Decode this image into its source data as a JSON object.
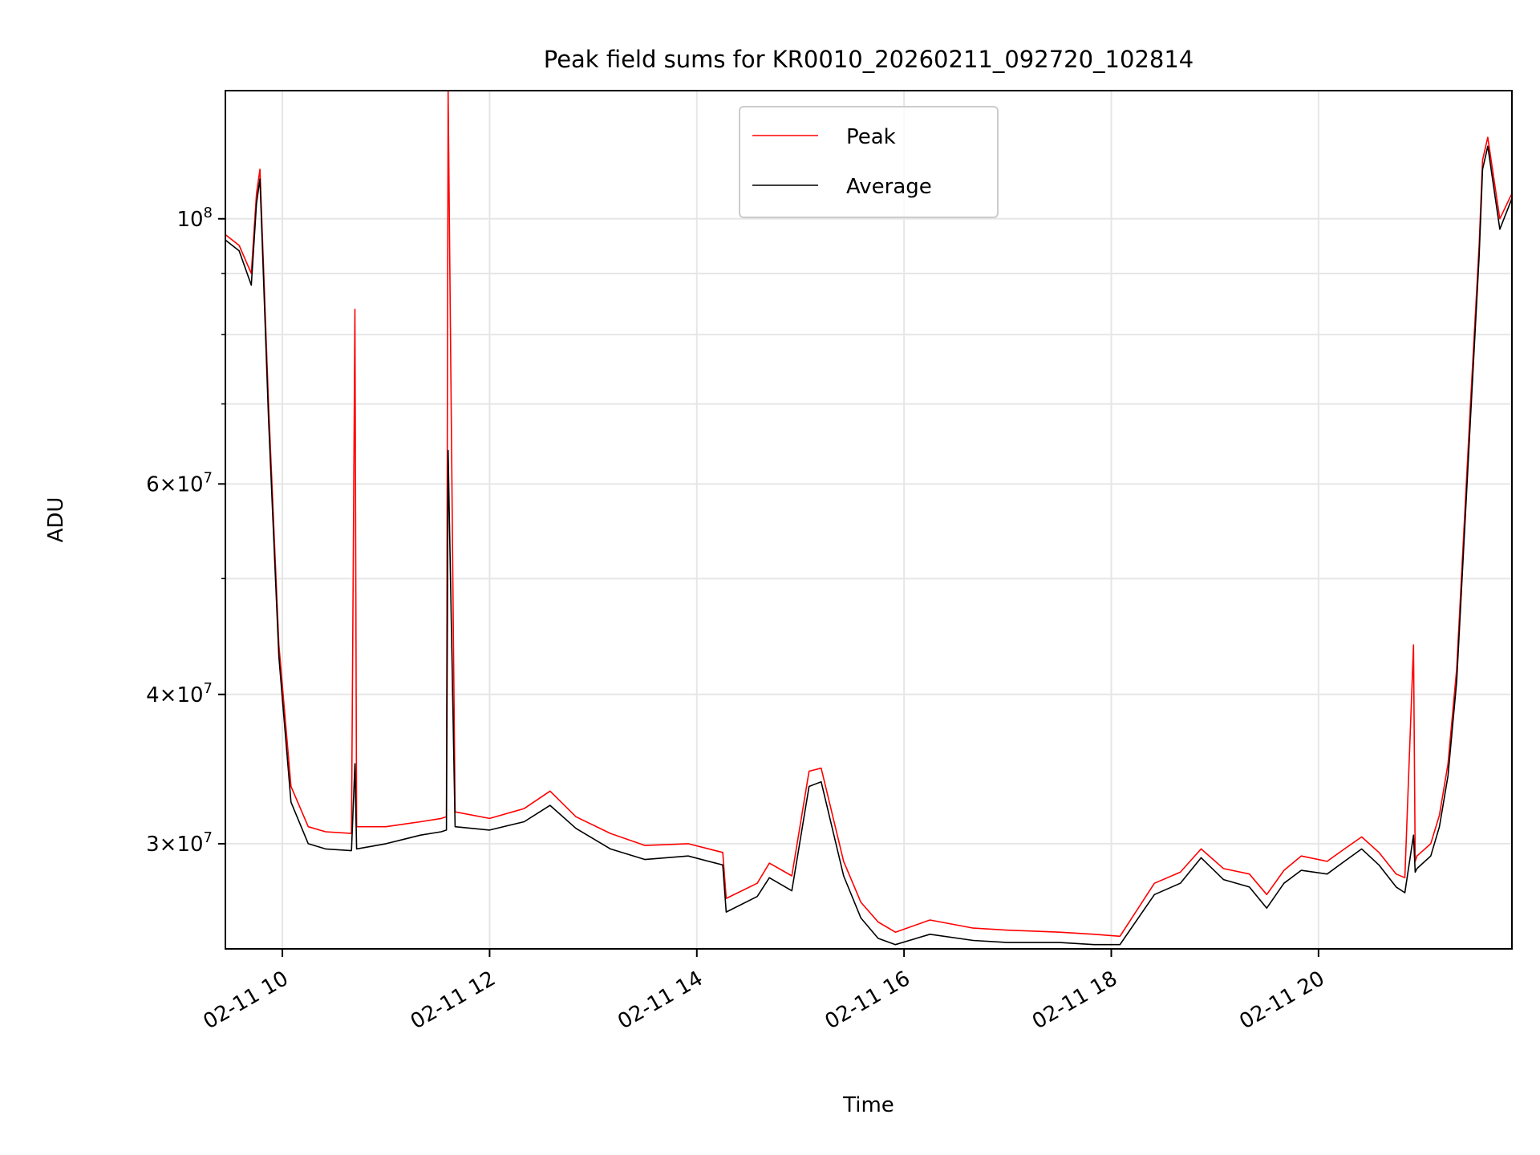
{
  "chart_data": {
    "type": "line",
    "title": "Peak field sums for KR0010_20260211_092720_102814",
    "xlabel": "Time",
    "ylabel": "ADU",
    "y_scale": "log",
    "grid": true,
    "legend_placement": "top-center",
    "xlim": [
      "02-11 09:27",
      "02-11 21:52"
    ],
    "ylim": [
      24500000.0,
      128000000.0
    ],
    "x_ticks": [
      "02-11 10",
      "02-11 12",
      "02-11 14",
      "02-11 16",
      "02-11 18",
      "02-11 20"
    ],
    "x_tick_hours": [
      10,
      12,
      14,
      16,
      18,
      20
    ],
    "y_ticks": [
      {
        "value": 30000000,
        "mantissa": "3",
        "exp": "7"
      },
      {
        "value": 40000000,
        "mantissa": "4",
        "exp": "7"
      },
      {
        "value": 60000000,
        "mantissa": "6",
        "exp": "7"
      },
      {
        "value": 100000000,
        "mantissa": "",
        "exp": "8"
      }
    ],
    "colors": {
      "peak": "#ff0000",
      "average": "#000000",
      "grid": "#e6e6e6"
    },
    "series": [
      {
        "name": "Peak",
        "x": [
          "02-11 09:27",
          "02-11 09:35",
          "02-11 09:42",
          "02-11 09:45",
          "02-11 09:47",
          "02-11 09:52",
          "02-11 09:58",
          "02-11 10:05",
          "02-11 10:15",
          "02-11 10:25",
          "02-11 10:40",
          "02-11 10:42",
          "02-11 10:43",
          "02-11 11:00",
          "02-11 11:20",
          "02-11 11:32",
          "02-11 11:35",
          "02-11 11:36",
          "02-11 11:40",
          "02-11 12:00",
          "02-11 12:20",
          "02-11 12:35",
          "02-11 12:50",
          "02-11 13:10",
          "02-11 13:30",
          "02-11 13:55",
          "02-11 14:15",
          "02-11 14:17",
          "02-11 14:35",
          "02-11 14:42",
          "02-11 14:55",
          "02-11 15:05",
          "02-11 15:12",
          "02-11 15:25",
          "02-11 15:35",
          "02-11 15:45",
          "02-11 15:55",
          "02-11 16:15",
          "02-11 16:40",
          "02-11 17:00",
          "02-11 17:30",
          "02-11 17:50",
          "02-11 18:05",
          "02-11 18:25",
          "02-11 18:40",
          "02-11 18:52",
          "02-11 19:05",
          "02-11 19:20",
          "02-11 19:30",
          "02-11 19:40",
          "02-11 19:50",
          "02-11 20:05",
          "02-11 20:15",
          "02-11 20:25",
          "02-11 20:35",
          "02-11 20:45",
          "02-11 20:50",
          "02-11 20:55",
          "02-11 20:56",
          "02-11 20:57",
          "02-11 21:05",
          "02-11 21:10",
          "02-11 21:15",
          "02-11 21:20",
          "02-11 21:28",
          "02-11 21:33",
          "02-11 21:35",
          "02-11 21:38",
          "02-11 21:45",
          "02-11 21:52"
        ],
        "y": [
          97000000,
          95000000,
          90000000,
          105000000,
          110000000,
          70000000,
          44000000,
          33500000,
          31000000,
          30700000,
          30600000,
          84000000,
          31000000,
          31000000,
          31300000,
          31500000,
          31600000,
          128000000,
          31900000,
          31500000,
          32100000,
          33200000,
          31600000,
          30600000,
          29900000,
          30000000,
          29500000,
          27000000,
          27800000,
          28900000,
          28200000,
          34500000,
          34700000,
          29000000,
          26800000,
          25800000,
          25300000,
          25900000,
          25500000,
          25400000,
          25300000,
          25200000,
          25100000,
          27800000,
          28400000,
          29700000,
          28600000,
          28300000,
          27200000,
          28500000,
          29300000,
          29000000,
          29700000,
          30400000,
          29500000,
          28300000,
          28100000,
          44000000,
          29000000,
          29300000,
          30000000,
          31700000,
          35000000,
          42000000,
          70000000,
          95000000,
          112000000,
          117000000,
          100000000,
          105000000
        ]
      },
      {
        "name": "Average",
        "x": [
          "02-11 09:27",
          "02-11 09:35",
          "02-11 09:42",
          "02-11 09:45",
          "02-11 09:47",
          "02-11 09:52",
          "02-11 09:58",
          "02-11 10:05",
          "02-11 10:15",
          "02-11 10:25",
          "02-11 10:40",
          "02-11 10:42",
          "02-11 10:43",
          "02-11 11:00",
          "02-11 11:20",
          "02-11 11:32",
          "02-11 11:35",
          "02-11 11:36",
          "02-11 11:40",
          "02-11 12:00",
          "02-11 12:20",
          "02-11 12:35",
          "02-11 12:50",
          "02-11 13:10",
          "02-11 13:30",
          "02-11 13:55",
          "02-11 14:15",
          "02-11 14:17",
          "02-11 14:35",
          "02-11 14:42",
          "02-11 14:55",
          "02-11 15:05",
          "02-11 15:12",
          "02-11 15:25",
          "02-11 15:35",
          "02-11 15:45",
          "02-11 15:55",
          "02-11 16:15",
          "02-11 16:40",
          "02-11 17:00",
          "02-11 17:30",
          "02-11 17:50",
          "02-11 18:05",
          "02-11 18:25",
          "02-11 18:40",
          "02-11 18:52",
          "02-11 19:05",
          "02-11 19:20",
          "02-11 19:30",
          "02-11 19:40",
          "02-11 19:50",
          "02-11 20:05",
          "02-11 20:15",
          "02-11 20:25",
          "02-11 20:35",
          "02-11 20:45",
          "02-11 20:50",
          "02-11 20:55",
          "02-11 20:56",
          "02-11 20:57",
          "02-11 21:05",
          "02-11 21:10",
          "02-11 21:15",
          "02-11 21:20",
          "02-11 21:28",
          "02-11 21:33",
          "02-11 21:35",
          "02-11 21:38",
          "02-11 21:45",
          "02-11 21:52"
        ],
        "y": [
          96000000,
          94000000,
          88000000,
          103000000,
          108000000,
          68000000,
          43000000,
          32500000,
          30000000,
          29700000,
          29600000,
          35000000,
          29700000,
          30000000,
          30500000,
          30700000,
          30800000,
          64000000,
          31000000,
          30800000,
          31300000,
          32300000,
          30900000,
          29700000,
          29100000,
          29300000,
          28800000,
          26300000,
          27100000,
          28100000,
          27400000,
          33500000,
          33800000,
          28200000,
          26000000,
          25000000,
          24700000,
          25200000,
          24900000,
          24800000,
          24800000,
          24700000,
          24700000,
          27200000,
          27800000,
          29200000,
          28000000,
          27600000,
          26500000,
          27800000,
          28500000,
          28300000,
          29000000,
          29700000,
          28800000,
          27600000,
          27300000,
          30500000,
          28400000,
          28600000,
          29300000,
          31000000,
          34200000,
          41000000,
          68000000,
          93000000,
          110000000,
          115000000,
          98000000,
          104000000
        ]
      }
    ]
  }
}
